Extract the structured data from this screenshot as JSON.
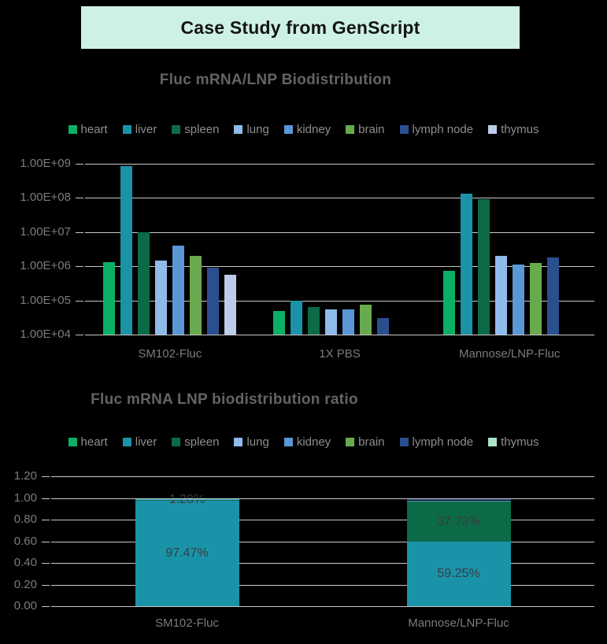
{
  "banner": {
    "title": "Case Study from GenScript"
  },
  "palette": {
    "background": "#000000",
    "banner_bg": "#cdf2e4",
    "banner_text": "#141414",
    "title_text": "#646464",
    "legend_text": "#8e8e8e",
    "axis_text": "#7c7c7c",
    "gridline": "#c9c9c9",
    "bar_label_text": "#3a3a42"
  },
  "chart_data": [
    {
      "type": "bar",
      "stacked": false,
      "title": "Fluc mRNA/LNP Biodistribution",
      "legend_position": "top",
      "grid": true,
      "y_scale": "log10",
      "ylim": [
        10000,
        1000000000
      ],
      "y_tick_labels": [
        "1.00E+09",
        "1.00E+08",
        "1.00E+07",
        "1.00E+06",
        "1.00E+05",
        "1.00E+04"
      ],
      "categories": [
        "SM102-Fluc",
        "1X PBS",
        "Mannose/LNP-Fluc"
      ],
      "series": [
        {
          "name": "heart",
          "color": "#0caf66",
          "values": [
            1300000,
            50000,
            750000
          ]
        },
        {
          "name": "liver",
          "color": "#1a93a8",
          "values": [
            850000000,
            100000,
            135000000
          ]
        },
        {
          "name": "spleen",
          "color": "#0c6b47",
          "values": [
            10000000,
            65000,
            90000000
          ]
        },
        {
          "name": "lung",
          "color": "#8fbbea",
          "values": [
            1500000,
            55000,
            2000000
          ]
        },
        {
          "name": "kidney",
          "color": "#5a97d6",
          "values": [
            4000000,
            55000,
            1100000
          ]
        },
        {
          "name": "brain",
          "color": "#69aa4e",
          "values": [
            2000000,
            75000,
            1250000
          ]
        },
        {
          "name": "lymph node",
          "color": "#2b4f8e",
          "values": [
            900000,
            30000,
            1800000
          ]
        },
        {
          "name": "thymus",
          "color": "#bdcce9",
          "values": [
            550000,
            null,
            null
          ]
        }
      ]
    },
    {
      "type": "bar",
      "stacked": true,
      "title": "Fluc mRNA LNP biodistribution ratio",
      "legend_position": "top",
      "grid": true,
      "y_scale": "linear",
      "ylim": [
        0,
        1.2
      ],
      "y_tick_labels": [
        "1.20",
        "1.00",
        "0.80",
        "0.60",
        "0.40",
        "0.20",
        "0.00"
      ],
      "categories": [
        "SM102-Fluc",
        "Mannose/LNP-Fluc"
      ],
      "series": [
        {
          "name": "heart",
          "color": "#0caf66",
          "values": [
            0.0005,
            0.0005
          ],
          "labels": [
            null,
            null
          ]
        },
        {
          "name": "liver",
          "color": "#1a93a8",
          "values": [
            0.9747,
            0.5925
          ],
          "labels": [
            "97.47%",
            "59.25%"
          ]
        },
        {
          "name": "spleen",
          "color": "#0c6b47",
          "values": [
            0.0128,
            0.3773
          ],
          "labels": [
            "1.28%",
            "37.73%"
          ]
        },
        {
          "name": "lung",
          "color": "#8fbbea",
          "values": [
            0.003,
            0.001
          ],
          "labels": [
            null,
            null
          ]
        },
        {
          "name": "kidney",
          "color": "#5a97d6",
          "values": [
            0.001,
            0.007
          ],
          "labels": [
            null,
            null
          ]
        },
        {
          "name": "brain",
          "color": "#69aa4e",
          "values": [
            0,
            0
          ],
          "labels": [
            null,
            null
          ]
        },
        {
          "name": "lymph node",
          "color": "#2b4f8e",
          "values": [
            0.0005,
            0.009
          ],
          "labels": [
            null,
            null
          ]
        },
        {
          "name": "thymus",
          "color": "#a9e4c9",
          "values": [
            0.0005,
            0
          ],
          "labels": [
            null,
            null
          ]
        }
      ]
    }
  ]
}
